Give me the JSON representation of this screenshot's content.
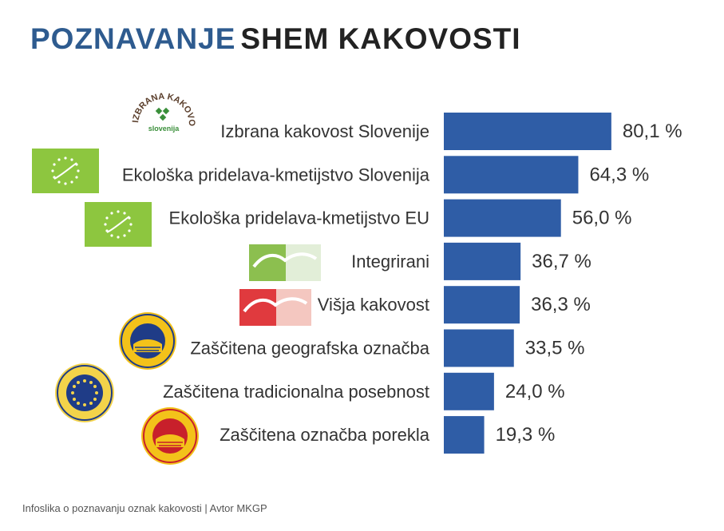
{
  "title": {
    "part1": "POZNAVANJE",
    "part2": "SHEM KAKOVOSTI"
  },
  "logo_ik": {
    "arc_text": "IZBRANA KAKOVOST",
    "inner_text": "slovenija"
  },
  "chart_data": {
    "type": "bar",
    "orientation": "horizontal",
    "categories": [
      "Izbrana kakovost Slovenije",
      "Ekološka pridelava-kmetijstvo Slovenija",
      "Ekološka pridelava-kmetijstvo EU",
      "Integrirani",
      "Višja kakovost",
      "Zaščitena geografska označba",
      "Zaščitena tradicionalna posebnost",
      "Zaščitena označba porekla"
    ],
    "values": [
      80.1,
      64.3,
      56.0,
      36.7,
      36.3,
      33.5,
      24.0,
      19.3
    ],
    "value_labels": [
      "80,1 %",
      "64,3 %",
      "56,0 %",
      "36,7 %",
      "36,3 %",
      "33,5 %",
      "24,0 %",
      "19,3 %"
    ],
    "bar_color": "#2f5da6",
    "logos": [
      "izbrana-kakovost-logo",
      "eu-organic-leaf-logo",
      "eu-organic-leaf-logo",
      "integrirano-logo",
      "visja-kakovost-logo",
      "pgi-seal-logo",
      "tsg-seal-logo",
      "pdo-seal-logo"
    ]
  },
  "footer": "Infoslika o poznavanju oznak kakovosti | Avtor MKGP"
}
